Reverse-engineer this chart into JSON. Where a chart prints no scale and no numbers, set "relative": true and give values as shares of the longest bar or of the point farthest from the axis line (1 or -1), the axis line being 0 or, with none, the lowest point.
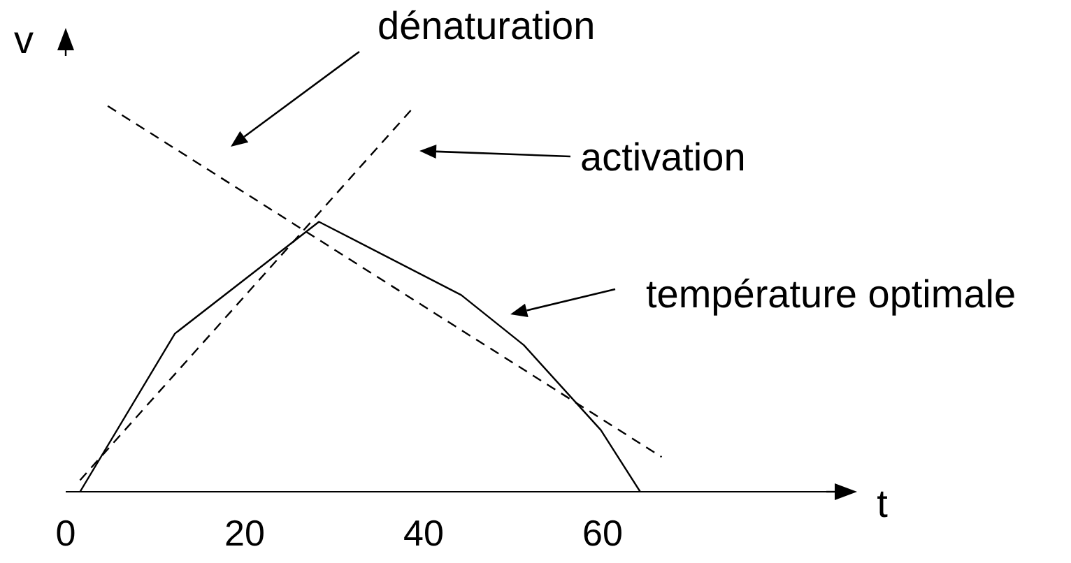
{
  "chart_data": {
    "type": "line",
    "relative": true,
    "xlabel": "t",
    "ylabel": "v",
    "xlim": [
      0,
      85
    ],
    "xticks": [
      0,
      20,
      40,
      60
    ],
    "marker": "none",
    "series": [
      {
        "color": "#000000",
        "line_style": "solid",
        "x": [
          1.6,
          12.2,
          28.3,
          44.2,
          51.2,
          59.8,
          64.2
        ],
        "values": [
          0,
          0.41,
          0.7,
          0.51,
          0.38,
          0.16,
          0
        ]
      },
      {
        "color": "#000000",
        "line_style": "dashed",
        "x": [
          1.6,
          39.0
        ],
        "values": [
          0.03,
          1.0
        ]
      },
      {
        "color": "#000000",
        "line_style": "dashed",
        "x": [
          4.7,
          66.6
        ],
        "values": [
          1.0,
          0.09
        ]
      }
    ],
    "annotations": [
      "dénaturation",
      "activation",
      "température optimale"
    ]
  }
}
